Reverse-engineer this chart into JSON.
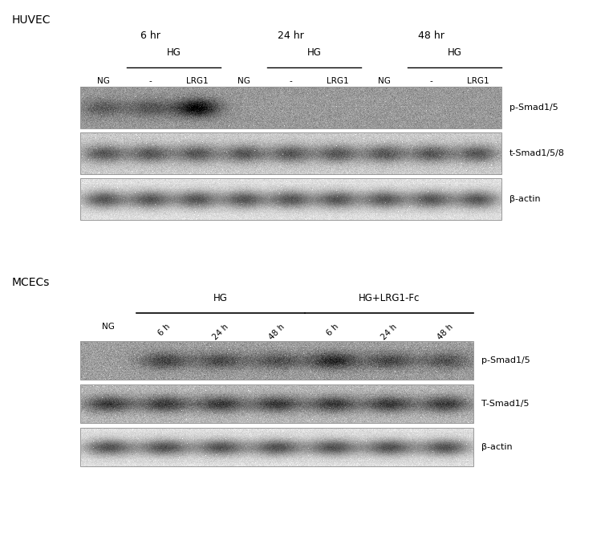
{
  "background_color": "#ffffff",
  "fig_width": 7.64,
  "fig_height": 6.79,
  "huvec_label": "HUVEC",
  "mcecs_label": "MCECs",
  "huvec_time_labels": [
    "6 hr",
    "24 hr",
    "48 hr"
  ],
  "huvec_hg_label": "HG",
  "huvec_row_labels": [
    "p-Smad1/5",
    "t-Smad1/5/8",
    "β-actin"
  ],
  "mcecs_hg_label": "HG",
  "mcecs_hglrg_label": "HG+LRG1-Fc",
  "mcecs_col_labels": [
    "NG",
    "6 h",
    "24 h",
    "48 h",
    "6 h",
    "24 h",
    "48 h"
  ],
  "mcecs_row_labels": [
    "p-Smad1/5",
    "T-Smad1/5",
    "β-actin"
  ]
}
